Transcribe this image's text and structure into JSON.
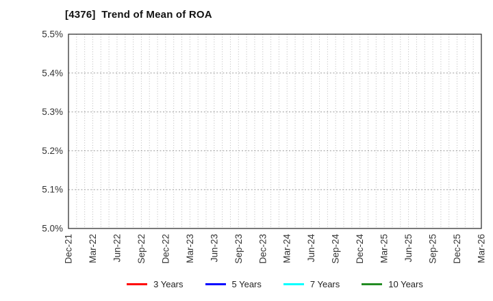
{
  "chart_data": {
    "type": "line",
    "title": "[4376]  Trend of Mean of ROA",
    "xlabel": "",
    "ylabel": "",
    "x_categories": [
      "Dec-21",
      "Mar-22",
      "Jun-22",
      "Sep-22",
      "Dec-22",
      "Mar-23",
      "Jun-23",
      "Sep-23",
      "Dec-23",
      "Mar-24",
      "Jun-24",
      "Sep-24",
      "Dec-24",
      "Mar-25",
      "Jun-25",
      "Sep-25",
      "Dec-25",
      "Mar-26"
    ],
    "x_minor_divisions_per_interval": 3,
    "y_ticks": [
      "5.5%",
      "5.4%",
      "5.3%",
      "5.2%",
      "5.1%",
      "5.0%"
    ],
    "ylim": [
      5.0,
      5.5
    ],
    "grid": true,
    "legend_position": "bottom",
    "series": [
      {
        "name": "3 Years",
        "color": "#ff0000",
        "values": []
      },
      {
        "name": "5 Years",
        "color": "#0000ff",
        "values": []
      },
      {
        "name": "7 Years",
        "color": "#00ffff",
        "values": []
      },
      {
        "name": "10 Years",
        "color": "#228b22",
        "values": []
      }
    ],
    "colors": {
      "plot_border": "#222222",
      "v_gridline": "#b8b8b8",
      "h_gridline": "#9a9a9a",
      "background": "#ffffff"
    }
  }
}
